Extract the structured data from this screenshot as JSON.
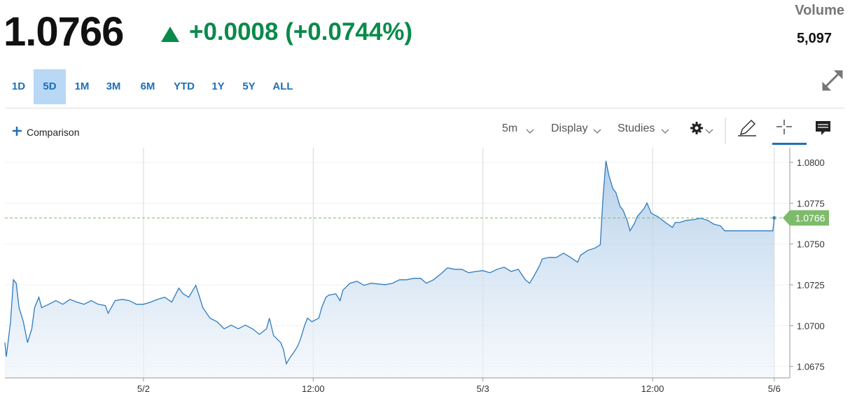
{
  "header": {
    "price": "1.0766",
    "change": "+0.0008 (+0.0744%)",
    "volume_label": "Volume",
    "volume": "5,097"
  },
  "ranges": {
    "items": [
      "1D",
      "5D",
      "1M",
      "3M",
      "6M",
      "YTD",
      "1Y",
      "5Y",
      "ALL"
    ],
    "selected": "5D"
  },
  "toolbar": {
    "comparison": "Comparison",
    "interval": "5m",
    "display": "Display",
    "studies": "Studies"
  },
  "chart_data": {
    "type": "line",
    "color": "#2f7bbf",
    "x": [
      -9.8,
      -9.7,
      -9.4,
      -9.2,
      -9.0,
      -8.8,
      -8.5,
      -8.2,
      -7.9,
      -7.7,
      -7.4,
      -7.2,
      -6.7,
      -6.2,
      -5.7,
      -5.2,
      -4.7,
      -4.2,
      -3.7,
      -3.2,
      -2.7,
      -2.5,
      -2.0,
      -1.5,
      -1.0,
      -0.5,
      0,
      0.5,
      1.0,
      1.5,
      2.0,
      2.5,
      2.8,
      3.2,
      3.7,
      4.2,
      4.7,
      5.2,
      5.7,
      6.2,
      6.7,
      7.2,
      7.7,
      8.2,
      8.7,
      8.9,
      9.2,
      9.7,
      9.9,
      10.1,
      10.4,
      10.6,
      10.9,
      11.1,
      11.4,
      11.6,
      11.9,
      12.4,
      12.6,
      12.9,
      13.1,
      13.6,
      13.9,
      14.1,
      14.6,
      15.1,
      15.6,
      16.1,
      16.6,
      17.1,
      17.6,
      18.1,
      18.6,
      19.1,
      19.6,
      20.0,
      20.5,
      21.0,
      21.5,
      22.0,
      22.5,
      23.0,
      23.5,
      24.0,
      24.5,
      25.0,
      25.5,
      26.0,
      26.5,
      27.0,
      27.3,
      27.6,
      28.0,
      28.2,
      28.7,
      29.2,
      29.7,
      30.2,
      30.7,
      30.9,
      31.4,
      31.9,
      32.3,
      32.5,
      32.7,
      32.9,
      33.2,
      33.4,
      33.7,
      33.9,
      34.2,
      34.4,
      34.7,
      34.9,
      35.4,
      35.6,
      35.9,
      36.4,
      36.9,
      37.4,
      37.6,
      37.9,
      38.4,
      38.9,
      39.4,
      39.9,
      40.3,
      40.8,
      41.1,
      41.8,
      42.8,
      43.8,
      44.5,
      44.6
    ],
    "values": [
      1.06896,
      1.0681,
      1.07024,
      1.07281,
      1.0726,
      1.0711,
      1.07024,
      1.06896,
      1.06981,
      1.0711,
      1.07174,
      1.0711,
      1.07131,
      1.07153,
      1.07131,
      1.07161,
      1.07144,
      1.07131,
      1.07153,
      1.07131,
      1.07123,
      1.07076,
      1.07153,
      1.07161,
      1.07153,
      1.07131,
      1.07131,
      1.07144,
      1.07161,
      1.07174,
      1.07144,
      1.0723,
      1.07195,
      1.07174,
      1.07247,
      1.0711,
      1.07046,
      1.07024,
      1.06981,
      1.07003,
      1.06981,
      1.07003,
      1.06981,
      1.06947,
      1.06981,
      1.07046,
      1.06939,
      1.06896,
      1.06853,
      1.06767,
      1.0681,
      1.06832,
      1.06874,
      1.06917,
      1.07003,
      1.07046,
      1.07024,
      1.07046,
      1.0711,
      1.07174,
      1.07187,
      1.07195,
      1.07153,
      1.07217,
      1.0726,
      1.07272,
      1.07247,
      1.0726,
      1.07255,
      1.07251,
      1.0726,
      1.07281,
      1.07281,
      1.0729,
      1.0729,
      1.0726,
      1.07281,
      1.07315,
      1.07354,
      1.07345,
      1.07345,
      1.07324,
      1.07332,
      1.07337,
      1.07324,
      1.07345,
      1.07358,
      1.07332,
      1.07345,
      1.07281,
      1.0726,
      1.07302,
      1.07367,
      1.07409,
      1.07418,
      1.07418,
      1.07444,
      1.07418,
      1.07388,
      1.07431,
      1.07461,
      1.07474,
      1.07495,
      1.07795,
      1.08009,
      1.07923,
      1.07837,
      1.07816,
      1.0773,
      1.07709,
      1.07645,
      1.07581,
      1.07623,
      1.07666,
      1.07718,
      1.07752,
      1.07688,
      1.07666,
      1.07632,
      1.07602,
      1.07632,
      1.07632,
      1.07645,
      1.07649,
      1.07658,
      1.07645,
      1.07623,
      1.07611,
      1.07581,
      1.07581,
      1.07581,
      1.07581,
      1.07581,
      1.0766
    ],
    "xlim": [
      -9.8,
      45.7
    ],
    "xticks": [
      {
        "value": 0,
        "label": "5/2"
      },
      {
        "value": 12,
        "label": "12:00"
      },
      {
        "value": 24,
        "label": "5/3"
      },
      {
        "value": 36,
        "label": "12:00"
      },
      {
        "value": 44.6,
        "label": "5/6"
      }
    ],
    "ylim": [
      1.0668,
      1.0809
    ],
    "yticks": [
      1.0675,
      {
        "value": 1.07,
        "label": "1.0700"
      },
      1.0725,
      {
        "value": 1.075,
        "label": "1.0750"
      },
      1.0775,
      {
        "value": 1.08,
        "label": "1.0800"
      }
    ],
    "price_line": {
      "value": 1.0766,
      "label": "1.0766",
      "color": "#7dbb6b"
    },
    "grid": true
  }
}
